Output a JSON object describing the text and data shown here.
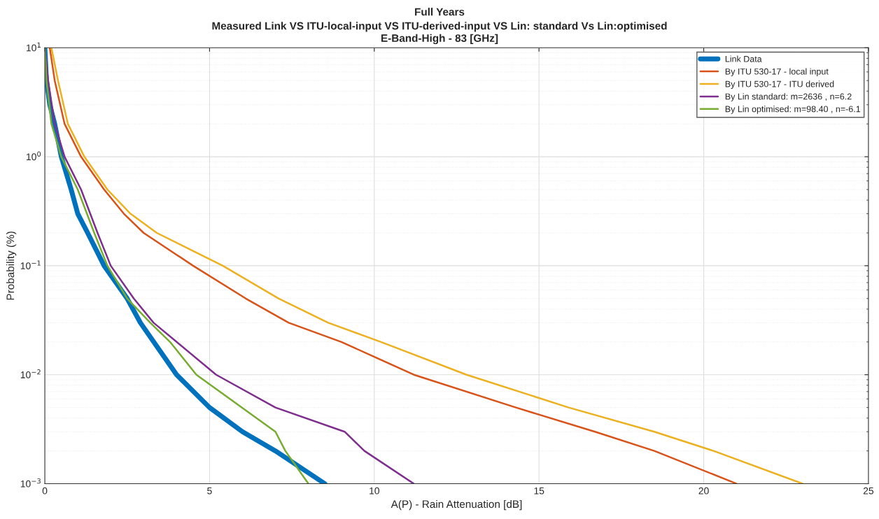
{
  "chart_data": {
    "type": "line",
    "title": "Full Years",
    "subtitle": "Measured Link VS ITU-local-input VS ITU-derived-input VS Lin: standard Vs Lin:optimised\nE-Band-High - 83 [GHz]",
    "xlabel": "A(P) - Rain Attenuation [dB]",
    "ylabel": "Probability (%)",
    "log": "y",
    "xlim": [
      0,
      25
    ],
    "xticks": [
      0,
      5,
      10,
      15,
      20,
      25
    ],
    "ylim": [
      0.001,
      10
    ],
    "yticks": [
      {
        "value": 0.001,
        "label": "10$^{−3}$"
      },
      {
        "value": 0.01,
        "label": "10$^{−2}$"
      },
      {
        "value": 0.1,
        "label": "10$^{−1}$"
      },
      {
        "value": 1,
        "label": "10$^{0}$"
      },
      {
        "value": 10,
        "label": "10$^{1}$"
      }
    ],
    "grid": true,
    "legend": "top right",
    "marker": "none",
    "line_style": "solid",
    "series": [
      {
        "name": "Link Data",
        "color": "#0072bd",
        "x": [
          0,
          0.05,
          0.15,
          0.3,
          0.5,
          0.8,
          1.0,
          1.3,
          1.8,
          2.5,
          2.9,
          4.0,
          5.0,
          6.0,
          7.0,
          8.5
        ],
        "values": [
          10,
          5,
          3,
          2,
          1,
          0.5,
          0.3,
          0.2,
          0.1,
          0.05,
          0.03,
          0.01,
          0.005,
          0.003,
          0.002,
          0.001
        ]
      },
      {
        "name": "By ITU 530-17 - local input",
        "color": "#d95319",
        "x": [
          0.15,
          0.3,
          0.6,
          1.1,
          1.8,
          2.4,
          3.0,
          4.5,
          6.1,
          7.4,
          9.0,
          11.2,
          14.3,
          16.7,
          18.5,
          21.0
        ],
        "values": [
          10,
          5,
          2,
          1,
          0.5,
          0.3,
          0.2,
          0.1,
          0.05,
          0.03,
          0.02,
          0.01,
          0.005,
          0.003,
          0.002,
          0.001
        ]
      },
      {
        "name": "By ITU 530-17 - ITU derived",
        "color": "#edb120",
        "x": [
          0.2,
          0.4,
          0.7,
          1.2,
          1.9,
          2.6,
          3.4,
          5.4,
          7.1,
          8.6,
          10.2,
          12.8,
          15.9,
          18.5,
          20.3,
          23.0
        ],
        "values": [
          10,
          5,
          2,
          1,
          0.5,
          0.3,
          0.2,
          0.1,
          0.05,
          0.03,
          0.02,
          0.01,
          0.005,
          0.003,
          0.002,
          0.001
        ]
      },
      {
        "name": "By Lin standard: m=2636 , n=6.2",
        "color": "#7e2f8e",
        "x": [
          0,
          0.1,
          0.3,
          0.6,
          1.1,
          1.6,
          2.0,
          2.7,
          3.3,
          4.0,
          5.2,
          7.0,
          9.1,
          9.7,
          11.2
        ],
        "values": [
          10,
          5,
          2,
          1,
          0.5,
          0.2,
          0.1,
          0.05,
          0.03,
          0.02,
          0.01,
          0.005,
          0.003,
          0.002,
          0.001
        ]
      },
      {
        "name": "By Lin optimised: m=98.40 , n=-6.1",
        "color": "#77ac30",
        "x": [
          0,
          0.05,
          0.2,
          0.5,
          1.0,
          1.5,
          1.9,
          2.5,
          3.2,
          3.8,
          4.6,
          7.0,
          7.3,
          8.0
        ],
        "values": [
          10,
          5,
          2,
          1,
          0.5,
          0.2,
          0.1,
          0.05,
          0.03,
          0.02,
          0.01,
          0.003,
          0.002,
          0.001
        ]
      }
    ]
  }
}
